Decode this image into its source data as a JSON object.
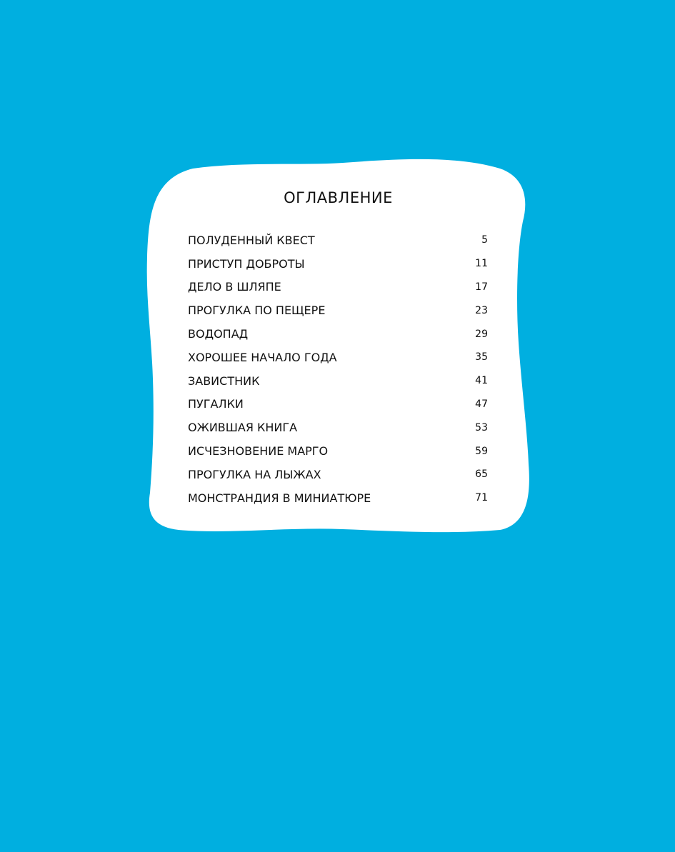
{
  "background_color": "#00afe0",
  "title": "ОГЛАВЛЕНИЕ",
  "entries": [
    {
      "title": "ПОЛУДЕННЫЙ КВЕСТ",
      "page": "5"
    },
    {
      "title": "ПРИСТУП ДОБРОТЫ",
      "page": "11"
    },
    {
      "title": "ДЕЛО В ШЛЯПЕ",
      "page": "17"
    },
    {
      "title": "ПРОГУЛКА ПО ПЕЩЕРЕ",
      "page": "23"
    },
    {
      "title": "ВОДОПАД",
      "page": "29"
    },
    {
      "title": "ХОРОШЕЕ НАЧАЛО ГОДА",
      "page": "35"
    },
    {
      "title": "ЗАВИСТНИК",
      "page": "41"
    },
    {
      "title": "ПУГАЛКИ",
      "page": "47"
    },
    {
      "title": "ОЖИВШАЯ КНИГА",
      "page": "53"
    },
    {
      "title": "ИСЧЕЗНОВЕНИЕ МАРГО",
      "page": "59"
    },
    {
      "title": "ПРОГУЛКА НА ЛЫЖАХ",
      "page": "65"
    },
    {
      "title": "МОНСТРАНДИЯ В МИНИАТЮРЕ",
      "page": "71"
    }
  ]
}
